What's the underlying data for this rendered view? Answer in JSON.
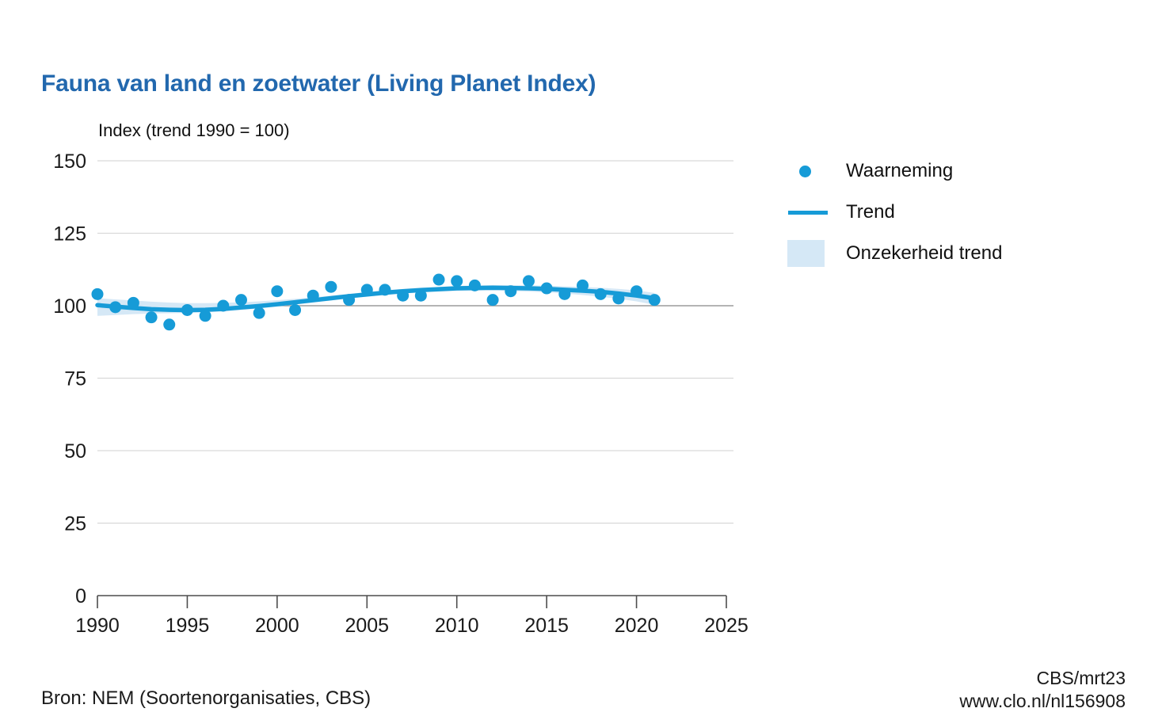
{
  "header": {
    "title": "Fauna van land en zoetwater (Living Planet Index)"
  },
  "chart_data": {
    "type": "line",
    "title": "Fauna van land en zoetwater (Living Planet Index)",
    "axis_title": "Index (trend 1990 = 100)",
    "xlim": [
      1990,
      2025
    ],
    "ylim": [
      0,
      150
    ],
    "xticks": [
      1990,
      1995,
      2000,
      2005,
      2010,
      2015,
      2020,
      2025
    ],
    "yticks": [
      0,
      25,
      50,
      75,
      100,
      125,
      150
    ],
    "grid": "horizontal",
    "emphasized_gridline": 100,
    "legend_position": "right",
    "x": [
      1990,
      1991,
      1992,
      1993,
      1994,
      1995,
      1996,
      1997,
      1998,
      1999,
      2000,
      2001,
      2002,
      2003,
      2004,
      2005,
      2006,
      2007,
      2008,
      2009,
      2010,
      2011,
      2012,
      2013,
      2014,
      2015,
      2016,
      2017,
      2018,
      2019,
      2020,
      2021
    ],
    "series": [
      {
        "name": "Waarneming",
        "type": "scatter",
        "color": "#169bd7",
        "values": [
          104,
          99.5,
          101,
          96,
          93.5,
          98.5,
          96.5,
          100,
          102,
          97.5,
          105,
          98.5,
          103.5,
          106.5,
          102,
          105.5,
          105.5,
          103.5,
          103.5,
          109,
          108.5,
          107,
          102,
          105,
          108.5,
          106,
          104,
          107,
          104,
          102.5,
          105,
          102
        ]
      },
      {
        "name": "Trend",
        "type": "line",
        "color": "#169bd7",
        "values": [
          100.2,
          99.7,
          99.2,
          98.8,
          98.6,
          98.5,
          98.6,
          98.9,
          99.4,
          99.9,
          100.5,
          101.2,
          101.9,
          102.6,
          103.3,
          103.9,
          104.5,
          105.0,
          105.4,
          105.7,
          106.0,
          106.1,
          106.2,
          106.1,
          106.0,
          105.8,
          105.5,
          105.2,
          104.8,
          104.2,
          103.5,
          102.6
        ]
      },
      {
        "name": "Onzekerheid trend",
        "type": "band",
        "color": "#d5e8f6",
        "lower": [
          96.5,
          96.8,
          97.1,
          97.3,
          97.4,
          97.5,
          97.7,
          98.0,
          98.5,
          99.1,
          99.7,
          100.4,
          101.1,
          101.8,
          102.5,
          103.1,
          103.7,
          104.2,
          104.6,
          104.9,
          105.1,
          105.2,
          105.2,
          105.1,
          104.9,
          104.6,
          104.2,
          103.7,
          103.1,
          102.4,
          101.5,
          100.3
        ],
        "upper": [
          102.6,
          102.2,
          101.8,
          101.4,
          101.1,
          100.9,
          100.9,
          101.0,
          101.2,
          101.5,
          101.9,
          102.4,
          102.9,
          103.5,
          104.1,
          104.7,
          105.3,
          105.8,
          106.2,
          106.5,
          106.8,
          107.0,
          107.1,
          107.1,
          107.0,
          106.9,
          106.7,
          106.5,
          106.2,
          105.8,
          105.3,
          104.4
        ]
      }
    ]
  },
  "legend": {
    "items": [
      {
        "label": "Waarneming",
        "marker": "dot"
      },
      {
        "label": "Trend",
        "marker": "line"
      },
      {
        "label": "Onzekerheid trend",
        "marker": "band"
      }
    ]
  },
  "footer": {
    "source": "Bron: NEM (Soortenorganisaties, CBS)",
    "credit": "CBS/mrt23",
    "url": "www.clo.nl/nl156908"
  },
  "colors": {
    "accent": "#169bd7",
    "band": "#d5e8f6",
    "title": "#2268ae",
    "grid": "#d9d9d9",
    "grid_emphasis": "#9b9b9b",
    "axis": "#4d4d4d"
  }
}
